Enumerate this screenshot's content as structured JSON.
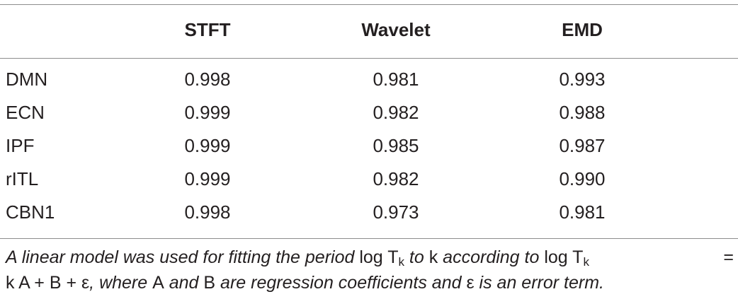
{
  "table": {
    "headers": [
      "",
      "STFT",
      "Wavelet",
      "EMD"
    ],
    "rows": [
      {
        "label": "DMN",
        "stft": "0.998",
        "wavelet": "0.981",
        "emd": "0.993"
      },
      {
        "label": "ECN",
        "stft": "0.999",
        "wavelet": "0.982",
        "emd": "0.988"
      },
      {
        "label": "IPF",
        "stft": "0.999",
        "wavelet": "0.985",
        "emd": "0.987"
      },
      {
        "label": "rITL",
        "stft": "0.999",
        "wavelet": "0.982",
        "emd": "0.990"
      },
      {
        "label": "CBN1",
        "stft": "0.998",
        "wavelet": "0.973",
        "emd": "0.981"
      }
    ]
  },
  "caption": {
    "t1": "A linear model was used for fitting the period ",
    "m1_log": "log T",
    "m1_sub": "k",
    "t2": " to ",
    "m2": "k",
    "t3": " according to ",
    "m3_log": "log T",
    "m3_sub": "k",
    "eq": "=",
    "m4": "k A + B + ε",
    "t4": ", where ",
    "m5": "A",
    "t5": " and ",
    "m6": "B",
    "t6": " are regression coefficients and ",
    "m7": "ε",
    "t7": " is an error term."
  }
}
